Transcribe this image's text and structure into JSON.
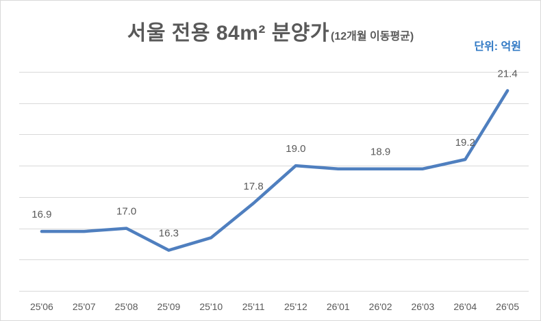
{
  "chart_data": {
    "type": "line",
    "title": "서울 전용 84m² 분양가",
    "subtitle": "(12개월 이동평균)",
    "unit_label": "단위: 억원",
    "categories": [
      "25'06",
      "25'07",
      "25'08",
      "25'09",
      "25'10",
      "25'11",
      "25'12",
      "26'01",
      "26'02",
      "26'03",
      "26'04",
      "26'05"
    ],
    "series": [
      {
        "values": [
          16.9,
          16.9,
          17.0,
          16.3,
          16.7,
          17.8,
          19.0,
          18.9,
          18.9,
          18.9,
          19.2,
          21.4
        ],
        "data_labels": [
          "16.9",
          null,
          "17.0",
          "16.3",
          null,
          "17.8",
          "19.0",
          null,
          "18.9",
          null,
          "19.2",
          "21.4"
        ],
        "color": "#4f7fbf"
      }
    ],
    "xlabel": "",
    "ylabel": "",
    "ylim": [
      15,
      22
    ],
    "grid": true,
    "legend": "none",
    "colors": {
      "title": "#595959",
      "unit": "#2f78c4",
      "text": "#595959",
      "grid": "#d9d9d9"
    }
  }
}
